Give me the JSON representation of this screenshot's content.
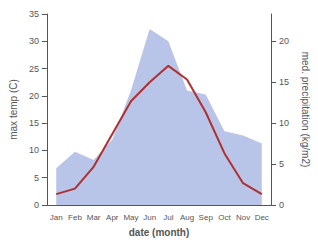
{
  "chart_data": {
    "type": "line",
    "categories": [
      "Jan",
      "Feb",
      "Mar",
      "Apr",
      "May",
      "Jun",
      "Jul",
      "Aug",
      "Sep",
      "Oct",
      "Nov",
      "Dec"
    ],
    "series": [
      {
        "type": "area",
        "axis": "y2",
        "color": "#b8c4e8",
        "values": [
          4.5,
          6.5,
          5.5,
          8.0,
          14.0,
          21.5,
          20.0,
          14.0,
          13.5,
          9.0,
          8.5,
          7.5
        ]
      },
      {
        "type": "line",
        "axis": "y",
        "color": "#b03030",
        "values": [
          2.0,
          3.0,
          7.0,
          13.0,
          19.0,
          22.5,
          25.5,
          23.0,
          17.0,
          9.5,
          4.0,
          2.0
        ]
      }
    ],
    "xlabel": "date (month)",
    "ylabel": "max temp (C)",
    "y2label": "med. precipitation (kg/m2)",
    "ylim": [
      0,
      35
    ],
    "yticks": [
      0,
      5,
      10,
      15,
      20,
      25,
      30,
      35
    ],
    "y2lim": [
      0,
      23.33
    ],
    "y2ticks": [
      0,
      5,
      10,
      15,
      20
    ],
    "grid": false
  }
}
